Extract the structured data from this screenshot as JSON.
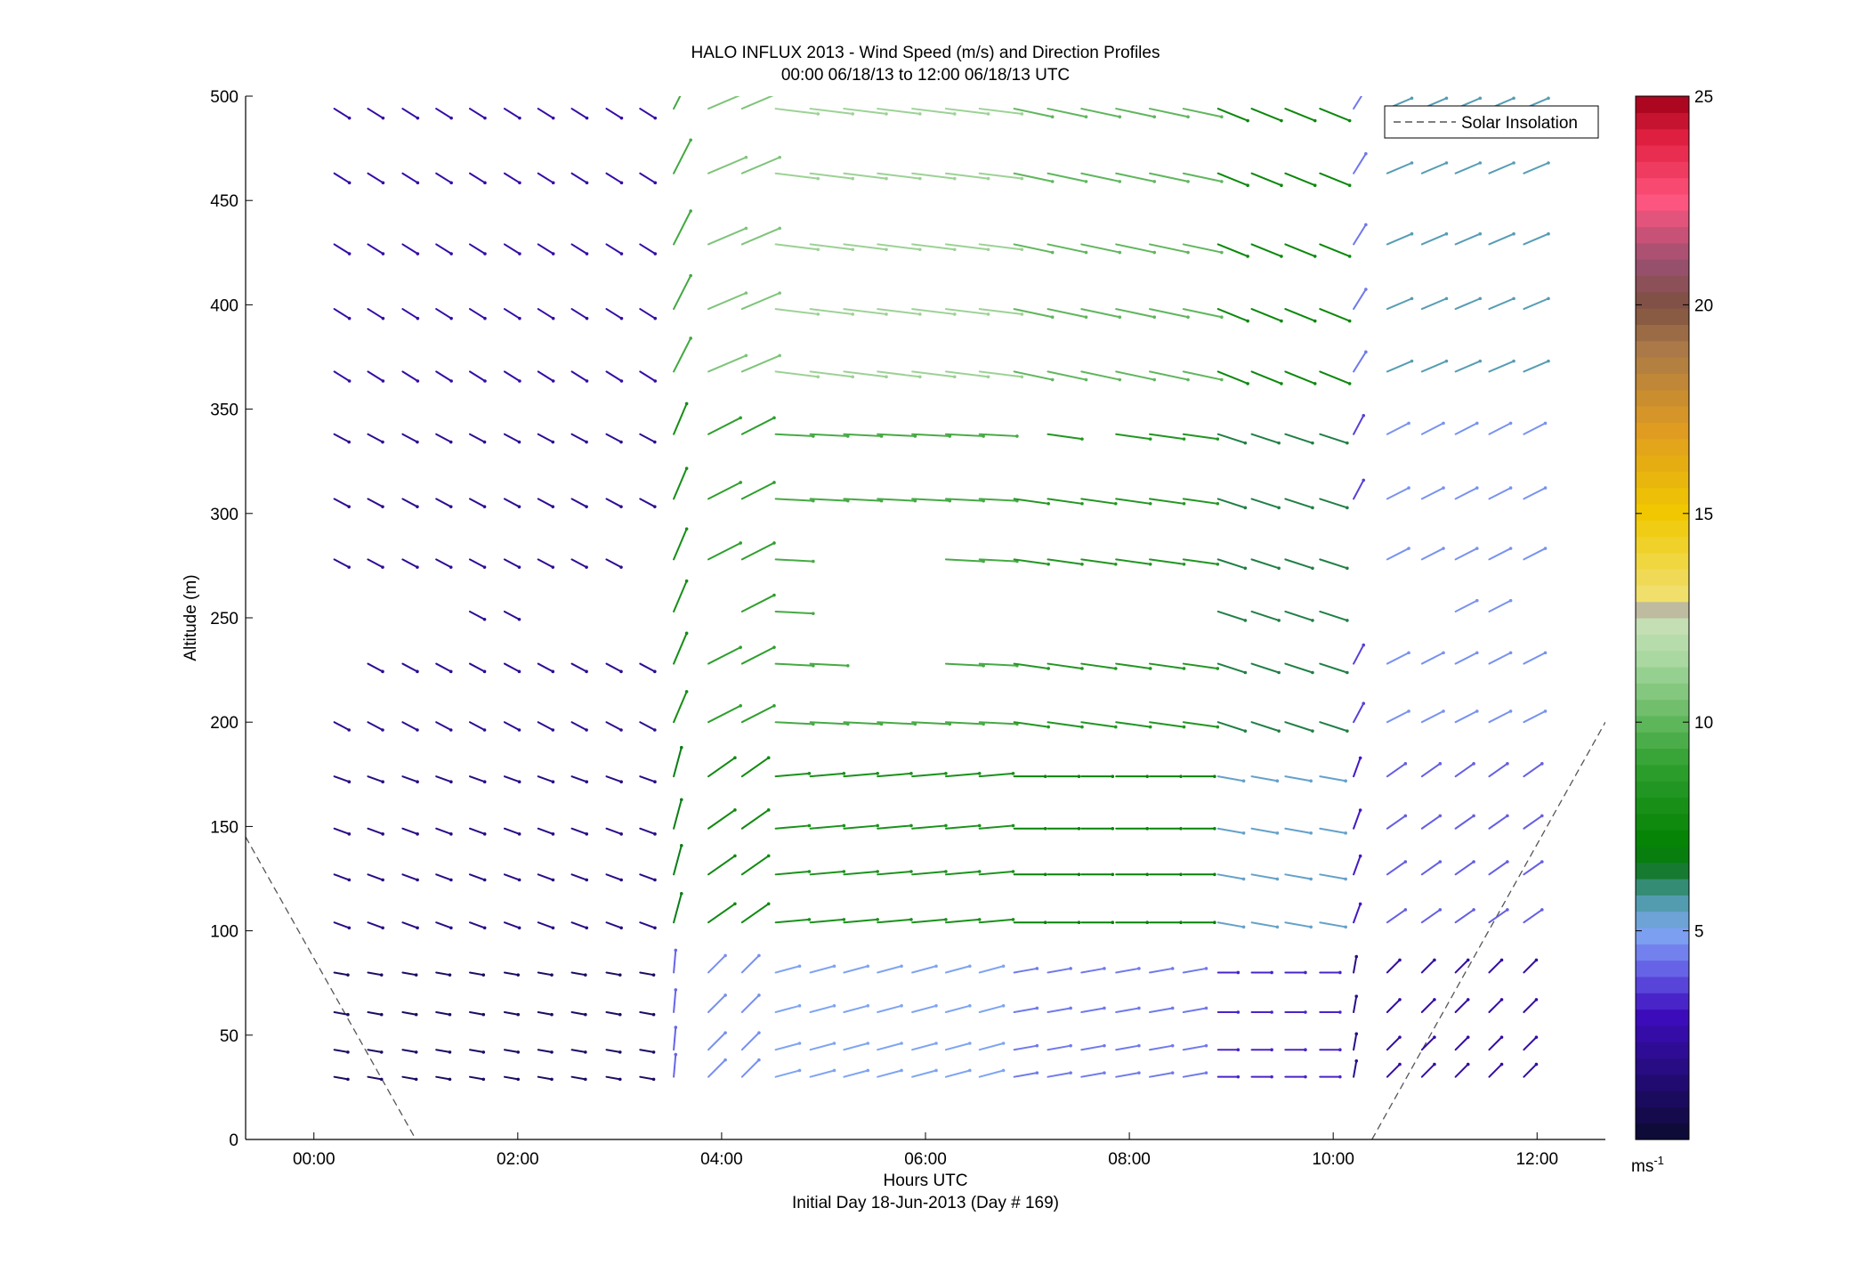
{
  "chart_data": {
    "type": "scatter",
    "title": "HALO INFLUX 2013 - Wind Speed (m/s) and Direction Profiles",
    "subtitle": "00:00 06/18/13 to 12:00 06/18/13  UTC",
    "xlabel": "Hours UTC",
    "xlabel2": "Initial Day 18-Jun-2013 (Day # 169)",
    "ylabel": "Altitude (m)",
    "xlim": [
      -0.67,
      12.67
    ],
    "ylim": [
      0,
      500
    ],
    "x_ticks": [
      0,
      2,
      4,
      6,
      8,
      10,
      12
    ],
    "x_tick_labels": [
      "00:00",
      "02:00",
      "04:00",
      "06:00",
      "08:00",
      "10:00",
      "12:00"
    ],
    "y_ticks": [
      0,
      50,
      100,
      150,
      200,
      250,
      300,
      350,
      400,
      450,
      500
    ],
    "y_tick_labels": [
      "0",
      "50",
      "100",
      "150",
      "200",
      "250",
      "300",
      "350",
      "400",
      "450",
      "500"
    ],
    "grid": false,
    "legend": {
      "position": "top-right",
      "entries": [
        "Solar Insolation"
      ]
    },
    "colorbar": {
      "label": "ms",
      "label_exponent": "-1",
      "range": [
        0,
        25
      ],
      "ticks": [
        5,
        10,
        15,
        20,
        25
      ],
      "tick_labels": [
        "5",
        "10",
        "15",
        "20",
        "25"
      ],
      "stops": [
        {
          "v": 0,
          "c": "#0b0b30"
        },
        {
          "v": 3,
          "c": "#3d0cbd"
        },
        {
          "v": 4.2,
          "c": "#6b6bea"
        },
        {
          "v": 5,
          "c": "#7fa8f2"
        },
        {
          "v": 5.8,
          "c": "#4a9aa3"
        },
        {
          "v": 6.4,
          "c": "#187a34"
        },
        {
          "v": 7,
          "c": "#008000"
        },
        {
          "v": 9,
          "c": "#30a030"
        },
        {
          "v": 11.5,
          "c": "#a8d8a0"
        },
        {
          "v": 12.4,
          "c": "#c8e0b8"
        },
        {
          "v": 12.6,
          "c": "#b0b0b0"
        },
        {
          "v": 13,
          "c": "#f0e070"
        },
        {
          "v": 15,
          "c": "#f0c800"
        },
        {
          "v": 17,
          "c": "#e09c20"
        },
        {
          "v": 19,
          "c": "#a87848"
        },
        {
          "v": 20,
          "c": "#7e5040"
        },
        {
          "v": 21,
          "c": "#9a5070"
        },
        {
          "v": 22.5,
          "c": "#ff5580"
        },
        {
          "v": 24,
          "c": "#e02040"
        },
        {
          "v": 25,
          "c": "#a00018"
        }
      ]
    },
    "solar_insolation": [
      {
        "x": [
          -0.67,
          1.0
        ],
        "y": [
          145,
          0
        ]
      },
      {
        "x": [
          10.38,
          12.67
        ],
        "y": [
          0,
          200
        ]
      }
    ],
    "altitudes": [
      30,
      43,
      61,
      80,
      104,
      127,
      149,
      174,
      200,
      228,
      253,
      278,
      307,
      338,
      368,
      398,
      429,
      463,
      494
    ],
    "times": [
      0.2,
      0.53,
      0.87,
      1.2,
      1.53,
      1.87,
      2.2,
      2.53,
      2.87,
      3.2,
      3.53,
      3.87,
      4.2,
      4.53,
      4.87,
      5.2,
      5.53,
      5.87,
      6.2,
      6.53,
      6.87,
      7.2,
      7.53,
      7.87,
      8.2,
      8.53,
      8.87,
      9.2,
      9.53,
      9.87,
      10.2,
      10.53,
      10.87,
      11.2,
      11.53,
      11.87
    ],
    "time_windows": [
      {
        "t0": 0,
        "t1": 3.4,
        "dir": 290,
        "speed": 2.0
      },
      {
        "t0": 3.4,
        "t1": 3.7,
        "dir": 195,
        "speed": 7.5
      },
      {
        "t0": 3.7,
        "t1": 4.4,
        "dir": 235,
        "speed": 8.5
      },
      {
        "t0": 4.4,
        "t1": 6.6,
        "dir": 265,
        "speed": 9.0
      },
      {
        "t0": 6.6,
        "t1": 8.6,
        "dir": 270,
        "speed": 8.0
      },
      {
        "t0": 8.6,
        "t1": 10.0,
        "dir": 280,
        "speed": 6.0
      },
      {
        "t0": 10.0,
        "t1": 10.5,
        "dir": 200,
        "speed": 3.5
      },
      {
        "t0": 10.5,
        "t1": 12.0,
        "dir": 235,
        "speed": 4.5
      }
    ],
    "altitude_bands": [
      {
        "z0": 0,
        "z1": 100,
        "speed_factor": 0.55,
        "dir_shift": -10
      },
      {
        "z0": 100,
        "z1": 200,
        "speed_factor": 0.9,
        "dir_shift": 0
      },
      {
        "z0": 200,
        "z1": 350,
        "speed_factor": 1.05,
        "dir_shift": 8
      },
      {
        "z0": 350,
        "z1": 500,
        "speed_factor": 1.25,
        "dir_shift": 12
      }
    ],
    "gaps": [
      {
        "z": 253,
        "t0": 0,
        "t1": 1.3
      },
      {
        "z": 253,
        "t0": 1.9,
        "t1": 3.4
      },
      {
        "z": 253,
        "t0": 3.7,
        "t1": 4.1
      },
      {
        "z": 253,
        "t0": 4.6,
        "t1": 8.55
      },
      {
        "z": 253,
        "t0": 10.2,
        "t1": 11.1
      },
      {
        "z": 253,
        "t0": 11.6,
        "t1": 12.0
      },
      {
        "z": 278,
        "t0": 1.9,
        "t1": 2.1
      },
      {
        "z": 278,
        "t0": 2.95,
        "t1": 3.4
      },
      {
        "z": 278,
        "t0": 4.7,
        "t1": 5.9
      },
      {
        "z": 278,
        "t0": 7.6,
        "t1": 7.85
      },
      {
        "z": 278,
        "t0": 10.2,
        "t1": 10.4
      },
      {
        "z": 228,
        "t0": 0,
        "t1": 0.35
      },
      {
        "z": 228,
        "t0": 4.9,
        "t1": 5.9
      },
      {
        "z": 228,
        "t0": 7.6,
        "t1": 7.85
      },
      {
        "z": 338,
        "t0": 6.6,
        "t1": 7.0
      },
      {
        "z": 338,
        "t0": 7.4,
        "t1": 7.6
      },
      {
        "z": 398,
        "t0": 0.9,
        "t1": 1.1
      }
    ]
  }
}
